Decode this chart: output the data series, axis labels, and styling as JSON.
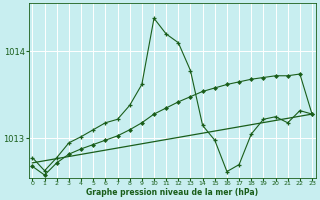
{
  "xlabel": "Graphe pression niveau de la mer (hPa)",
  "bg_color": "#c8eef0",
  "grid_color": "#ffffff",
  "line_color": "#1a5e1a",
  "x_ticks": [
    0,
    1,
    2,
    3,
    4,
    5,
    6,
    7,
    8,
    9,
    10,
    11,
    12,
    13,
    14,
    15,
    16,
    17,
    18,
    19,
    20,
    21,
    22,
    23
  ],
  "y_ticks": [
    1013,
    1014
  ],
  "ylim": [
    1012.55,
    1014.55
  ],
  "xlim": [
    -0.3,
    23.3
  ],
  "series1_x": [
    0,
    1,
    2,
    3,
    4,
    5,
    6,
    7,
    8,
    9,
    10,
    11,
    12,
    13,
    14,
    15,
    16,
    17,
    18,
    19,
    20,
    21,
    22,
    23
  ],
  "series1_y": [
    1012.78,
    1012.63,
    1012.78,
    1012.95,
    1013.02,
    1013.1,
    1013.18,
    1013.22,
    1013.38,
    1013.62,
    1014.38,
    1014.2,
    1014.1,
    1013.78,
    1013.15,
    1012.98,
    1012.62,
    1012.7,
    1013.05,
    1013.22,
    1013.25,
    1013.18,
    1013.32,
    1013.28
  ],
  "series2_x": [
    0,
    1,
    2,
    3,
    4,
    5,
    6,
    7,
    8,
    9,
    10,
    11,
    12,
    13,
    14,
    15,
    16,
    17,
    18,
    19,
    20,
    21,
    22,
    23
  ],
  "series2_y": [
    1012.68,
    1012.58,
    1012.72,
    1012.82,
    1012.88,
    1012.93,
    1012.98,
    1013.03,
    1013.1,
    1013.18,
    1013.28,
    1013.35,
    1013.42,
    1013.48,
    1013.54,
    1013.58,
    1013.62,
    1013.65,
    1013.68,
    1013.7,
    1013.72,
    1013.72,
    1013.74,
    1013.28
  ],
  "series3_x": [
    0,
    23
  ],
  "series3_y": [
    1012.72,
    1013.28
  ]
}
